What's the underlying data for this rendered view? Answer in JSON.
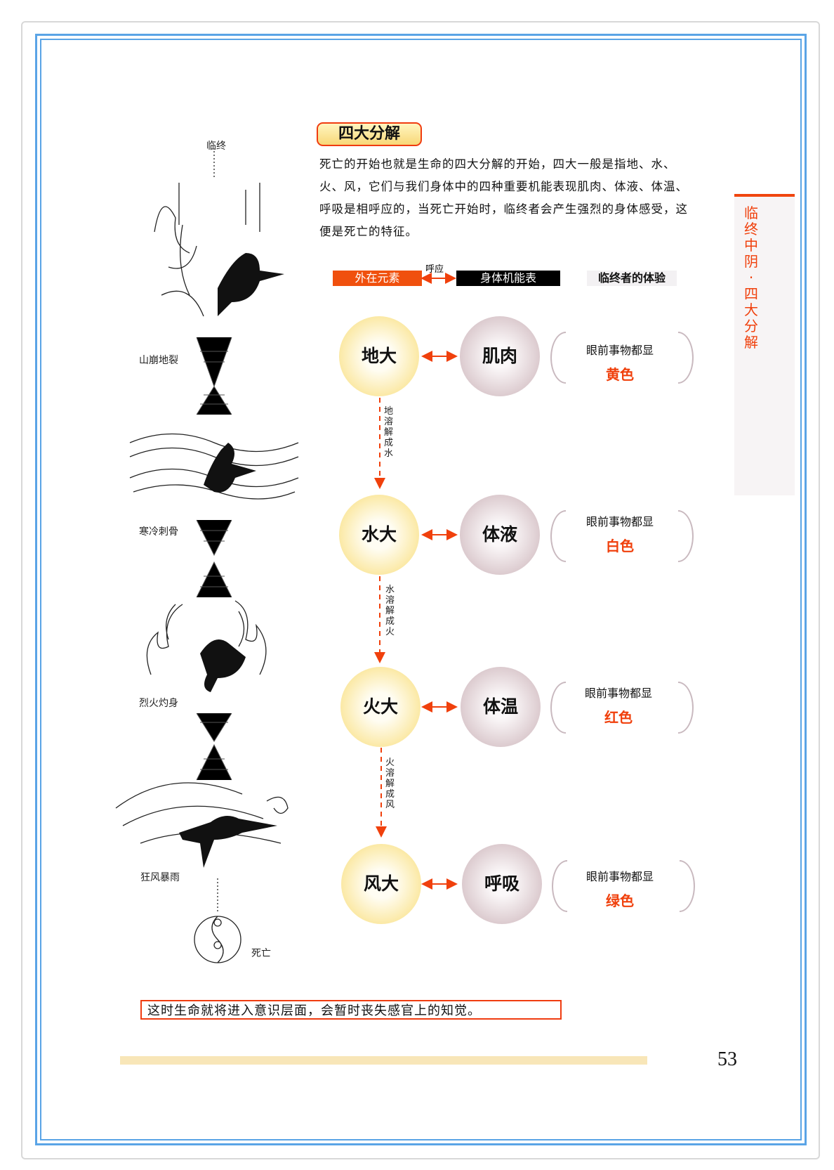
{
  "section_title": "四大分解",
  "intro": "死亡的开始也就是生命的四大分解的开始，四大一般是指地、水、火、风，它们与我们身体中的四种重要机能表现肌肉、体液、体温、呼吸是相呼应的，当死亡开始时，临终者会产生强烈的身体感受，这便是死亡的特征。",
  "legend": {
    "external": "外在元素",
    "correspond": "呼应",
    "body": "身体机能表",
    "experience": "临终者的体验"
  },
  "rows": [
    {
      "element": "地大",
      "body": "肌肉",
      "exp_prefix": "眼前事物都显",
      "color": "黄色",
      "transition": "地溶解成水"
    },
    {
      "element": "水大",
      "body": "体液",
      "exp_prefix": "眼前事物都显",
      "color": "白色",
      "transition": "水溶解成火"
    },
    {
      "element": "火大",
      "body": "体温",
      "exp_prefix": "眼前事物都显",
      "color": "红色",
      "transition": "火溶解成风"
    },
    {
      "element": "风大",
      "body": "呼吸",
      "exp_prefix": "眼前事物都显",
      "color": "绿色"
    }
  ],
  "illustration_labels": {
    "start": "临终",
    "earth": "山崩地裂",
    "water": "寒冷刺骨",
    "fire": "烈火灼身",
    "wind": "狂风暴雨",
    "end": "死亡"
  },
  "side_tab": "临终中阴·四大分解",
  "caption": "这时生命就将进入意识层面，会暂时丧失感官上的知觉。",
  "page_number": "53",
  "colors": {
    "accent": "#f0400c",
    "border": "#5aa4e6",
    "element_circle": "#f5d56b",
    "body_circle": "#b49aa2"
  }
}
